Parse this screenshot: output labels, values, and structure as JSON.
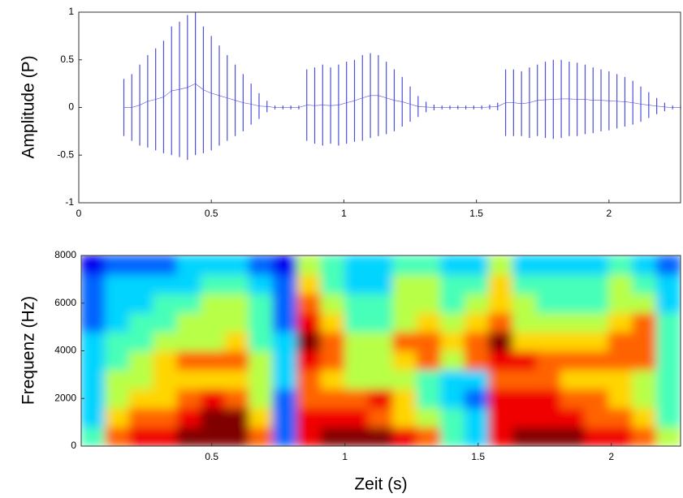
{
  "chart_data": [
    {
      "type": "waveform",
      "ylabel": "Amplitude (P)",
      "color": "#4f4fd9",
      "xlim": [
        0,
        2.27
      ],
      "xticks": [
        0,
        0.5,
        1,
        1.5,
        2
      ],
      "ylim": [
        -1,
        1
      ],
      "yticks": [
        -1,
        -0.5,
        0,
        0.5,
        1
      ],
      "x": [
        0.17,
        0.2,
        0.23,
        0.26,
        0.29,
        0.32,
        0.35,
        0.38,
        0.41,
        0.44,
        0.47,
        0.5,
        0.53,
        0.56,
        0.59,
        0.62,
        0.65,
        0.68,
        0.71,
        0.74,
        0.77,
        0.8,
        0.83,
        0.86,
        0.89,
        0.92,
        0.95,
        0.98,
        1.01,
        1.04,
        1.07,
        1.1,
        1.13,
        1.16,
        1.19,
        1.22,
        1.25,
        1.28,
        1.31,
        1.34,
        1.37,
        1.4,
        1.43,
        1.46,
        1.49,
        1.52,
        1.55,
        1.58,
        1.61,
        1.64,
        1.67,
        1.7,
        1.73,
        1.76,
        1.79,
        1.82,
        1.85,
        1.88,
        1.91,
        1.94,
        1.97,
        2.0,
        2.03,
        2.06,
        2.09,
        2.12,
        2.15,
        2.18,
        2.21,
        2.24,
        2.27
      ],
      "values": [
        0.3,
        0.35,
        0.45,
        0.55,
        0.62,
        0.7,
        0.85,
        0.9,
        0.97,
        1.0,
        0.85,
        0.75,
        0.65,
        0.55,
        0.45,
        0.35,
        0.25,
        0.15,
        0.07,
        0.02,
        0.02,
        0.02,
        0.02,
        0.4,
        0.42,
        0.45,
        0.42,
        0.45,
        0.48,
        0.5,
        0.55,
        0.57,
        0.55,
        0.48,
        0.4,
        0.32,
        0.22,
        0.12,
        0.06,
        0.03,
        0.02,
        0.02,
        0.02,
        0.02,
        0.02,
        0.02,
        0.03,
        0.05,
        0.4,
        0.4,
        0.38,
        0.42,
        0.45,
        0.48,
        0.5,
        0.5,
        0.48,
        0.47,
        0.45,
        0.42,
        0.4,
        0.38,
        0.35,
        0.32,
        0.28,
        0.22,
        0.16,
        0.1,
        0.05,
        0.02,
        0.02
      ],
      "mins": [
        -0.3,
        -0.35,
        -0.4,
        -0.42,
        -0.45,
        -0.48,
        -0.5,
        -0.52,
        -0.55,
        -0.5,
        -0.48,
        -0.45,
        -0.4,
        -0.35,
        -0.3,
        -0.25,
        -0.18,
        -0.12,
        -0.05,
        -0.02,
        -0.02,
        -0.02,
        -0.02,
        -0.35,
        -0.38,
        -0.4,
        -0.38,
        -0.4,
        -0.38,
        -0.36,
        -0.35,
        -0.32,
        -0.3,
        -0.28,
        -0.25,
        -0.2,
        -0.15,
        -0.1,
        -0.05,
        -0.03,
        -0.02,
        -0.02,
        -0.02,
        -0.02,
        -0.02,
        -0.02,
        -0.02,
        -0.03,
        -0.3,
        -0.3,
        -0.3,
        -0.32,
        -0.3,
        -0.32,
        -0.33,
        -0.32,
        -0.3,
        -0.3,
        -0.28,
        -0.27,
        -0.25,
        -0.24,
        -0.22,
        -0.2,
        -0.18,
        -0.15,
        -0.11,
        -0.07,
        -0.04,
        -0.02,
        -0.02
      ]
    },
    {
      "type": "spectrogram",
      "ylabel": "Frequenz (Hz)",
      "xlabel": "Zeit (s)",
      "xlim": [
        0.01,
        2.26
      ],
      "xticks": [
        0.5,
        1,
        1.5,
        2
      ],
      "ylim": [
        0,
        8000
      ],
      "yticks": [
        0,
        2000,
        4000,
        6000,
        8000
      ],
      "zlim": [
        0,
        9
      ],
      "xbins": [
        0.01,
        0.1,
        0.19,
        0.28,
        0.37,
        0.46,
        0.55,
        0.64,
        0.73,
        0.82,
        0.91,
        1.0,
        1.09,
        1.18,
        1.27,
        1.36,
        1.45,
        1.54,
        1.63,
        1.72,
        1.81,
        1.9,
        1.99,
        2.08,
        2.17,
        2.26
      ],
      "ybins": [
        0,
        800,
        1600,
        2400,
        3200,
        4000,
        4800,
        5600,
        6400,
        7200,
        8000
      ],
      "z": [
        [
          4,
          7,
          8,
          8,
          9,
          9,
          9,
          7,
          2,
          8,
          9,
          9,
          9,
          8,
          7,
          4,
          3,
          8,
          9,
          9,
          9,
          8,
          8,
          7,
          5
        ],
        [
          3,
          6,
          7,
          7,
          8,
          9,
          9,
          6,
          2,
          8,
          8,
          8,
          7,
          6,
          5,
          4,
          3,
          8,
          8,
          8,
          8,
          7,
          7,
          6,
          4
        ],
        [
          3,
          5,
          6,
          6,
          7,
          8,
          7,
          5,
          2,
          7,
          7,
          7,
          8,
          6,
          4,
          3,
          2,
          8,
          8,
          8,
          7,
          7,
          6,
          5,
          4
        ],
        [
          3,
          5,
          5,
          6,
          6,
          6,
          6,
          5,
          3,
          7,
          6,
          5,
          5,
          5,
          4,
          3,
          3,
          7,
          7,
          7,
          6,
          6,
          6,
          5,
          4
        ],
        [
          3,
          4,
          5,
          6,
          7,
          7,
          7,
          5,
          3,
          8,
          7,
          5,
          5,
          6,
          7,
          5,
          7,
          8,
          8,
          7,
          7,
          7,
          7,
          7,
          4
        ],
        [
          3,
          4,
          4,
          5,
          5,
          5,
          6,
          4,
          3,
          9,
          7,
          5,
          5,
          7,
          7,
          6,
          7,
          9,
          6,
          6,
          6,
          6,
          7,
          7,
          4
        ],
        [
          2,
          3,
          4,
          4,
          5,
          5,
          5,
          4,
          2,
          8,
          6,
          4,
          4,
          5,
          6,
          5,
          6,
          7,
          5,
          5,
          5,
          5,
          6,
          7,
          4
        ],
        [
          2,
          3,
          3,
          4,
          4,
          5,
          5,
          4,
          2,
          7,
          5,
          4,
          4,
          5,
          5,
          4,
          5,
          6,
          5,
          4,
          4,
          4,
          5,
          5,
          3
        ],
        [
          2,
          3,
          3,
          3,
          3,
          4,
          4,
          3,
          2,
          6,
          4,
          3,
          3,
          5,
          5,
          4,
          4,
          6,
          4,
          4,
          4,
          4,
          5,
          4,
          3
        ],
        [
          1,
          2,
          2,
          2,
          3,
          3,
          3,
          2,
          1,
          5,
          4,
          3,
          3,
          4,
          4,
          3,
          3,
          5,
          3,
          3,
          3,
          3,
          4,
          3,
          2
        ]
      ]
    }
  ]
}
